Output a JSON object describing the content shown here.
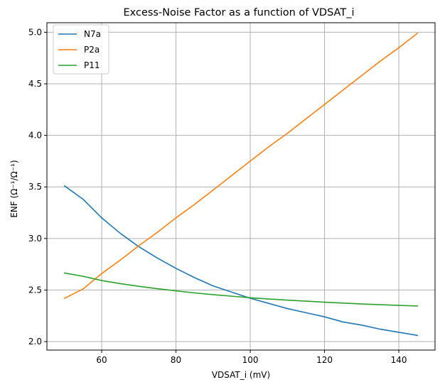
{
  "chart_data": {
    "type": "line",
    "title": "Excess-Noise Factor as a function of VDSAT_i",
    "xlabel": "VDSAT_i (mV)",
    "ylabel": "ENF (Ω⁻¹/Ω⁻¹)",
    "xlim": [
      45.25,
      149.75
    ],
    "ylim": [
      1.9175,
      5.0925
    ],
    "xticks": [
      60,
      80,
      100,
      120,
      140
    ],
    "yticks": [
      2.0,
      2.5,
      3.0,
      3.5,
      4.0,
      4.5,
      5.0
    ],
    "xtick_labels": [
      "60",
      "80",
      "100",
      "120",
      "140"
    ],
    "ytick_labels": [
      "2.0",
      "2.5",
      "3.0",
      "3.5",
      "4.0",
      "4.5",
      "5.0"
    ],
    "grid": true,
    "legend_position": "top-left",
    "series": [
      {
        "name": "N7a",
        "color": "#1f77b4",
        "x": [
          50,
          55,
          60,
          65,
          70,
          75,
          80,
          85,
          90,
          95,
          100,
          105,
          110,
          115,
          120,
          125,
          130,
          135,
          140,
          145
        ],
        "y": [
          3.51,
          3.38,
          3.2,
          3.05,
          2.92,
          2.81,
          2.71,
          2.62,
          2.54,
          2.48,
          2.42,
          2.37,
          2.32,
          2.28,
          2.24,
          2.19,
          2.16,
          2.12,
          2.09,
          2.06
        ]
      },
      {
        "name": "P2a",
        "color": "#ff7f0e",
        "x": [
          50,
          55,
          60,
          65,
          70,
          75,
          80,
          85,
          90,
          95,
          100,
          105,
          110,
          115,
          120,
          125,
          130,
          135,
          140,
          145
        ],
        "y": [
          2.42,
          2.51,
          2.66,
          2.79,
          2.93,
          3.06,
          3.2,
          3.33,
          3.47,
          3.61,
          3.75,
          3.89,
          4.02,
          4.16,
          4.3,
          4.44,
          4.58,
          4.72,
          4.85,
          4.99
        ]
      },
      {
        "name": "P11",
        "color": "#2ca02c",
        "x": [
          50,
          55,
          60,
          65,
          70,
          75,
          80,
          85,
          90,
          95,
          100,
          105,
          110,
          115,
          120,
          125,
          130,
          135,
          140,
          145
        ],
        "y": [
          2.665,
          2.633,
          2.592,
          2.562,
          2.536,
          2.513,
          2.492,
          2.472,
          2.455,
          2.44,
          2.425,
          2.413,
          2.402,
          2.392,
          2.382,
          2.373,
          2.365,
          2.358,
          2.351,
          2.345
        ]
      }
    ]
  }
}
